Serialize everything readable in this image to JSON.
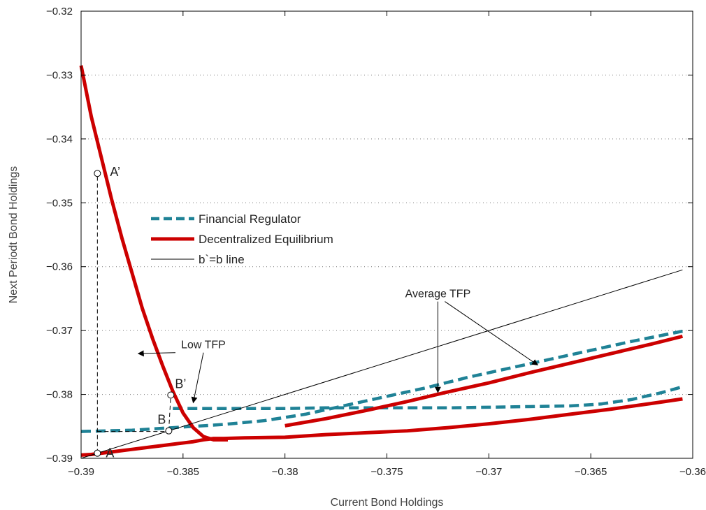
{
  "colors": {
    "financial_regulator": "#1f8296",
    "decentralized_equilibrium": "#cc0000",
    "identity_line": "#000000",
    "grid": "#777777",
    "axes": "#000000"
  },
  "chart_data": {
    "type": "line",
    "title": "",
    "xlabel": "Current Bond Holdings",
    "ylabel": "Next Periodt Bond Holdings",
    "xlim": [
      -0.39,
      -0.36
    ],
    "ylim": [
      -0.39,
      -0.32
    ],
    "xticks": [
      -0.39,
      -0.385,
      -0.38,
      -0.375,
      -0.37,
      -0.365,
      -0.36
    ],
    "xtick_labels": [
      "−0.39",
      "−0.385",
      "−0.38",
      "−0.375",
      "−0.37",
      "−0.365",
      "−0.36"
    ],
    "yticks": [
      -0.32,
      -0.33,
      -0.34,
      -0.35,
      -0.36,
      -0.37,
      -0.38,
      -0.39
    ],
    "ytick_labels": [
      "−0.32",
      "−0.33",
      "−0.34",
      "−0.35",
      "−0.36",
      "−0.37",
      "−0.38",
      "−0.39"
    ],
    "grid": "horizontal-dotted",
    "legend_position": "center-left",
    "series": [
      {
        "name": "Financial Regulator",
        "state": "Average TFP",
        "style": "dashed",
        "x": [
          -0.39,
          -0.3875,
          -0.385,
          -0.383,
          -0.381,
          -0.379,
          -0.377,
          -0.375,
          -0.373,
          -0.371,
          -0.369,
          -0.367,
          -0.365,
          -0.363,
          -0.3605
        ],
        "y": [
          -0.3858,
          -0.3856,
          -0.3851,
          -0.3847,
          -0.3841,
          -0.3831,
          -0.3817,
          -0.3803,
          -0.3789,
          -0.3773,
          -0.3759,
          -0.3745,
          -0.3731,
          -0.3717,
          -0.3701
        ]
      },
      {
        "name": "Financial Regulator",
        "state": "Low TFP",
        "style": "dashed",
        "x": [
          -0.3855,
          -0.384,
          -0.382,
          -0.38,
          -0.378,
          -0.376,
          -0.374,
          -0.372,
          -0.37,
          -0.368,
          -0.366,
          -0.3645,
          -0.363,
          -0.3615,
          -0.3605
        ],
        "y": [
          -0.3822,
          -0.3822,
          -0.3822,
          -0.3822,
          -0.3821,
          -0.3821,
          -0.3821,
          -0.3821,
          -0.382,
          -0.3819,
          -0.3818,
          -0.3815,
          -0.3808,
          -0.3797,
          -0.3788
        ]
      },
      {
        "name": "Decentralized Equilibrium",
        "state": "Average TFP",
        "style": "solid",
        "x": [
          -0.38,
          -0.378,
          -0.376,
          -0.374,
          -0.372,
          -0.37,
          -0.368,
          -0.366,
          -0.364,
          -0.362,
          -0.3605
        ],
        "y": [
          -0.3849,
          -0.3838,
          -0.3825,
          -0.3811,
          -0.3796,
          -0.3782,
          -0.3766,
          -0.3751,
          -0.3736,
          -0.3721,
          -0.3709
        ]
      },
      {
        "name": "Decentralized Equilibrium",
        "state": "Low TFP",
        "style": "solid",
        "x": [
          -0.39,
          -0.3895,
          -0.389,
          -0.3885,
          -0.388,
          -0.3875,
          -0.387,
          -0.3865,
          -0.386,
          -0.3855,
          -0.385,
          -0.3845,
          -0.384,
          -0.3835,
          -0.383,
          -0.382,
          -0.38,
          -0.378,
          -0.376,
          -0.374,
          -0.372,
          -0.37,
          -0.368,
          -0.366,
          -0.364,
          -0.362,
          -0.3605
        ],
        "y": [
          -0.3895,
          -0.3894,
          -0.3892,
          -0.389,
          -0.3888,
          -0.3886,
          -0.3884,
          -0.3882,
          -0.388,
          -0.3878,
          -0.3876,
          -0.3874,
          -0.3871,
          -0.3869,
          -0.3869,
          -0.3868,
          -0.3867,
          -0.3863,
          -0.386,
          -0.3857,
          -0.3852,
          -0.3846,
          -0.3839,
          -0.3831,
          -0.3823,
          -0.3814,
          -0.3807
        ]
      },
      {
        "name": "Decentralized Equilibrium",
        "state": "high branch",
        "style": "solid",
        "x": [
          -0.39,
          -0.3895,
          -0.389,
          -0.3885,
          -0.388,
          -0.3875,
          -0.387,
          -0.3865,
          -0.386,
          -0.3855,
          -0.385,
          -0.3845,
          -0.384,
          -0.3835,
          -0.3828
        ],
        "y": [
          -0.3285,
          -0.3365,
          -0.343,
          -0.3495,
          -0.3555,
          -0.361,
          -0.3665,
          -0.3712,
          -0.3755,
          -0.3795,
          -0.3829,
          -0.3852,
          -0.3866,
          -0.3871,
          -0.3871
        ]
      },
      {
        "name": "b`=b line",
        "style": "thin",
        "x": [
          -0.39,
          -0.3605
        ],
        "y": [
          -0.39,
          -0.3605
        ]
      }
    ],
    "points": [
      {
        "label": "A",
        "x": -0.3892,
        "y": -0.3892
      },
      {
        "label": "A’",
        "x": -0.3892,
        "y": -0.3454
      },
      {
        "label": "B",
        "x": -0.3857,
        "y": -0.3857
      },
      {
        "label": "B’",
        "x": -0.3856,
        "y": -0.3801
      }
    ],
    "guides": [
      {
        "from": [
          -0.3892,
          -0.3892
        ],
        "to": [
          -0.3892,
          -0.3454
        ]
      },
      {
        "from": [
          -0.3892,
          -0.3858
        ],
        "to": [
          -0.3857,
          -0.3858
        ]
      },
      {
        "from": [
          -0.3857,
          -0.3857
        ],
        "to": [
          -0.3856,
          -0.3801
        ]
      }
    ],
    "annotations": [
      {
        "text": "Average TFP",
        "anchor": [
          -0.3725,
          -0.3648
        ],
        "arrows_to": [
          [
            -0.3725,
            -0.3797
          ],
          [
            -0.3676,
            -0.3754
          ]
        ]
      },
      {
        "text": "Low TFP",
        "anchor": [
          -0.384,
          -0.3728
        ],
        "arrows_to": [
          [
            -0.3872,
            -0.3736
          ],
          [
            -0.3845,
            -0.3813
          ]
        ]
      }
    ]
  }
}
